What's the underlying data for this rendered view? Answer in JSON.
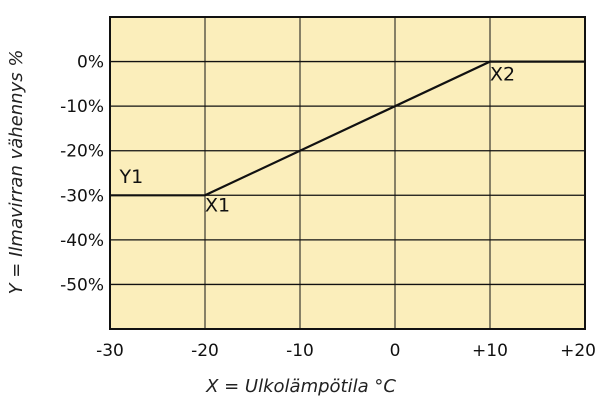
{
  "chart_data": {
    "type": "line",
    "xlabel": "X = Ulkolämpötila  °C",
    "ylabel": "Y = Ilmavirran vähennys %",
    "x_ticks": [
      "-30",
      "-20",
      "-10",
      "0",
      "+10",
      "+20"
    ],
    "y_ticks": [
      "0%",
      "-10%",
      "-20%",
      "-30%",
      "-40%",
      "-50%"
    ],
    "xlim": [
      -30,
      20
    ],
    "ylim": [
      -60,
      10
    ],
    "grid": true,
    "background": "#fbeebb",
    "line_color": "#111111",
    "series": [
      {
        "x": [
          -30,
          -20,
          10,
          20
        ],
        "y": [
          -30,
          -30,
          0,
          0
        ]
      }
    ],
    "annotations": [
      {
        "text": "Y1",
        "x": -29,
        "y": -27.2
      },
      {
        "text": "X1",
        "x": -20,
        "y": -33.6
      },
      {
        "text": "X2",
        "x": 10,
        "y": -4.2
      }
    ]
  }
}
